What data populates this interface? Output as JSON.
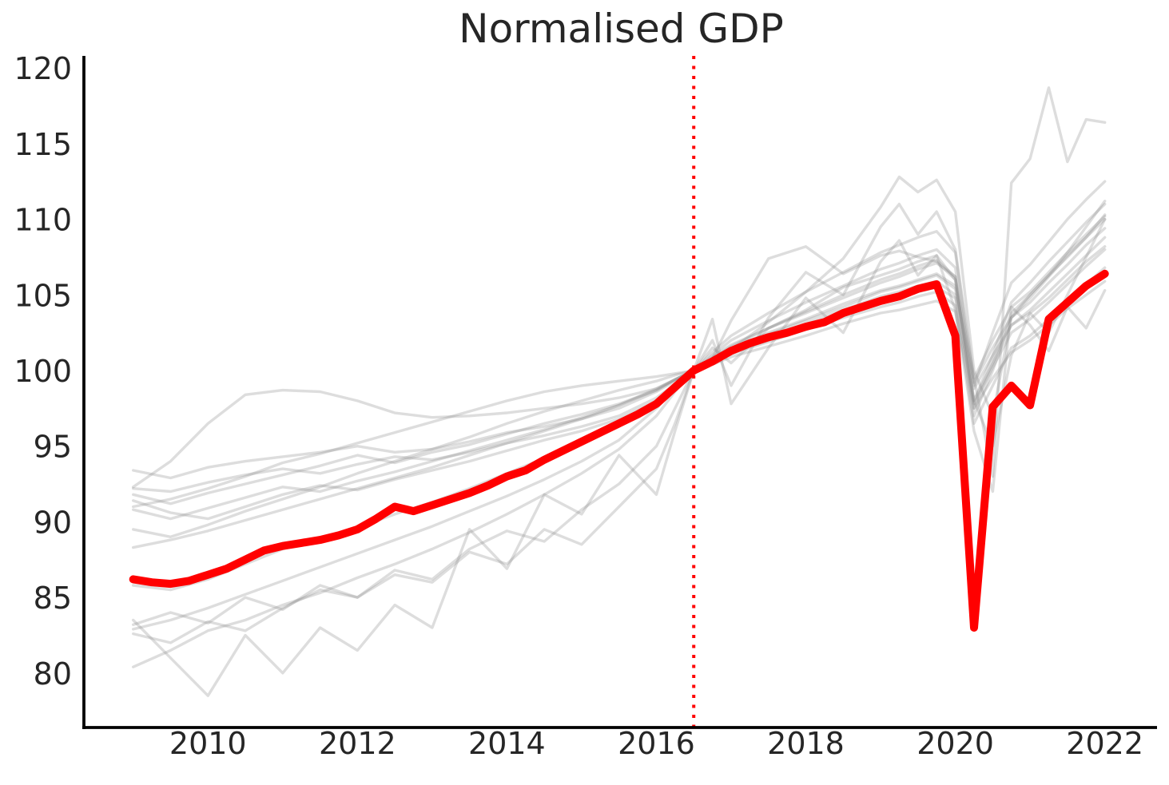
{
  "figure": {
    "title": "Normalised GDP"
  },
  "chart_data": {
    "type": "line",
    "title": "Normalised GDP",
    "xlabel": "",
    "ylabel": "",
    "grid": false,
    "legend_position": "none",
    "xlim": [
      2008.34,
      2022.72
    ],
    "ylim": [
      76.4,
      120.8
    ],
    "x_ticks": [
      2010,
      2012,
      2014,
      2016,
      2018,
      2020,
      2022
    ],
    "y_ticks": [
      80,
      85,
      90,
      95,
      100,
      105,
      110,
      115,
      120
    ],
    "colors": {
      "highlight_line": "#ff0000",
      "vline": "#ff0000",
      "background_lines": "#8f8f8f",
      "axis": "#000000",
      "text": "#262626"
    },
    "vline": {
      "x": 2016.5,
      "style": "dotted"
    },
    "highlight_series": {
      "x": [
        2009.0,
        2009.25,
        2009.5,
        2009.75,
        2010.0,
        2010.25,
        2010.5,
        2010.75,
        2011.0,
        2011.25,
        2011.5,
        2011.75,
        2012.0,
        2012.25,
        2012.5,
        2012.75,
        2013.0,
        2013.25,
        2013.5,
        2013.75,
        2014.0,
        2014.25,
        2014.5,
        2014.75,
        2015.0,
        2015.25,
        2015.5,
        2015.75,
        2016.0,
        2016.25,
        2016.5,
        2016.75,
        2017.0,
        2017.25,
        2017.5,
        2017.75,
        2018.0,
        2018.25,
        2018.5,
        2018.75,
        2019.0,
        2019.25,
        2019.5,
        2019.75,
        2020.0,
        2020.25,
        2020.5,
        2020.75,
        2021.0,
        2021.25,
        2021.5,
        2021.75,
        2022.0
      ],
      "y": [
        86.2,
        86.0,
        85.9,
        86.1,
        86.5,
        86.9,
        87.5,
        88.1,
        88.4,
        88.6,
        88.8,
        89.1,
        89.5,
        90.2,
        91.0,
        90.7,
        91.1,
        91.5,
        91.9,
        92.4,
        93.0,
        93.4,
        94.1,
        94.7,
        95.3,
        95.9,
        96.5,
        97.1,
        97.8,
        98.9,
        100.0,
        100.6,
        101.3,
        101.8,
        102.2,
        102.5,
        102.9,
        103.2,
        103.8,
        104.2,
        104.6,
        104.9,
        105.4,
        105.7,
        102.3,
        83.0,
        97.6,
        99.0,
        97.7,
        103.4,
        104.5,
        105.6,
        106.4
      ]
    },
    "background_series_x": [
      2009.0,
      2009.5,
      2010.0,
      2010.5,
      2011.0,
      2011.5,
      2012.0,
      2012.5,
      2013.0,
      2013.5,
      2014.0,
      2014.5,
      2015.0,
      2015.5,
      2016.0,
      2016.25,
      2016.5,
      2016.75,
      2017.0,
      2017.5,
      2018.0,
      2018.5,
      2019.0,
      2019.25,
      2019.5,
      2019.75,
      2020.0,
      2020.25,
      2020.5,
      2020.75,
      2021.0,
      2021.25,
      2021.5,
      2021.75,
      2022.0
    ],
    "background_series": [
      {
        "y": [
          93.4,
          92.9,
          93.6,
          94.0,
          94.3,
          94.6,
          95.0,
          94.6,
          94.8,
          95.3,
          95.9,
          96.3,
          96.8,
          97.5,
          98.6,
          99.3,
          100,
          100.6,
          101.2,
          102.0,
          102.9,
          103.7,
          104.5,
          104.8,
          105.2,
          105.5,
          104.8,
          98.0,
          100.5,
          103.0,
          103.8,
          104.8,
          106.0,
          107.2,
          108.2
        ]
      },
      {
        "y": [
          92.3,
          94.0,
          96.5,
          98.4,
          98.7,
          98.6,
          98.0,
          97.2,
          96.9,
          97.0,
          97.2,
          97.5,
          97.8,
          98.2,
          98.8,
          99.4,
          100,
          100.4,
          100.9,
          101.6,
          102.3,
          103.1,
          103.8,
          104.0,
          104.3,
          104.6,
          103.9,
          97.5,
          99.5,
          101.2,
          102.0,
          103.0,
          104.1,
          105.0,
          105.9
        ]
      },
      {
        "y": [
          92.2,
          92.0,
          92.6,
          93.1,
          93.5,
          93.2,
          93.8,
          94.3,
          94.1,
          94.6,
          95.2,
          95.7,
          96.3,
          97.0,
          98.2,
          99.1,
          100,
          100.8,
          101.5,
          102.5,
          103.4,
          104.4,
          105.3,
          105.6,
          106.0,
          106.4,
          105.6,
          99.2,
          101.5,
          103.5,
          104.5,
          105.8,
          107.0,
          108.3,
          109.4
        ]
      },
      {
        "y": [
          91.8,
          91.2,
          91.9,
          92.5,
          93.1,
          93.7,
          94.4,
          93.9,
          94.6,
          95.1,
          95.8,
          96.5,
          97.1,
          97.8,
          98.7,
          99.4,
          100,
          100.5,
          101.1,
          101.9,
          102.7,
          103.5,
          104.2,
          104.5,
          104.9,
          105.2,
          104.3,
          96.5,
          99.0,
          101.5,
          102.3,
          103.4,
          104.6,
          105.7,
          106.8
        ]
      },
      {
        "y": [
          91.4,
          90.6,
          90.2,
          91.0,
          91.8,
          92.4,
          92.1,
          92.8,
          93.4,
          94.0,
          94.7,
          95.4,
          96.0,
          96.8,
          98.0,
          99.0,
          100,
          100.9,
          101.7,
          102.8,
          103.8,
          104.8,
          105.8,
          106.2,
          106.7,
          107.1,
          106.2,
          99.5,
          102.0,
          104.2,
          105.2,
          106.5,
          107.8,
          109.0,
          110.2
        ]
      },
      {
        "y": [
          91.0,
          91.5,
          92.2,
          93.0,
          93.9,
          94.5,
          95.2,
          95.9,
          96.6,
          97.3,
          98.0,
          98.6,
          99.0,
          99.3,
          99.6,
          99.8,
          100,
          100.8,
          103.3,
          107.4,
          108.2,
          106.4,
          107.6,
          107.9,
          107.5,
          107.2,
          106.0,
          98.0,
          95.0,
          101.0,
          103.8,
          102.5,
          105.0,
          107.5,
          110.0
        ]
      },
      {
        "y": [
          89.5,
          89.0,
          89.8,
          90.7,
          91.5,
          92.3,
          93.2,
          94.0,
          94.8,
          95.6,
          96.5,
          97.3,
          98.0,
          98.7,
          99.3,
          99.7,
          100,
          100.6,
          101.4,
          103.2,
          105.2,
          107.4,
          110.8,
          112.8,
          111.8,
          112.6,
          110.5,
          100.0,
          97.0,
          103.5,
          105.0,
          106.3,
          107.8,
          109.5,
          111.2
        ]
      },
      {
        "y": [
          88.3,
          88.8,
          89.4,
          90.1,
          90.8,
          91.5,
          92.2,
          92.9,
          93.6,
          94.4,
          95.2,
          96.0,
          96.8,
          97.7,
          98.7,
          99.4,
          100,
          100.7,
          101.4,
          102.4,
          103.3,
          104.2,
          105.2,
          105.5,
          105.9,
          106.3,
          105.4,
          98.8,
          101.0,
          103.0,
          104.0,
          105.2,
          106.4,
          107.6,
          108.8
        ]
      },
      {
        "y": [
          85.8,
          85.5,
          86.2,
          87.2,
          88.2,
          88.9,
          89.6,
          90.5,
          91.3,
          92.2,
          93.2,
          94.2,
          95.2,
          96.3,
          98.0,
          99.0,
          100,
          100.8,
          101.6,
          102.8,
          103.9,
          105.0,
          106.0,
          106.4,
          106.9,
          107.3,
          106.2,
          97.5,
          100.5,
          103.8,
          105.0,
          106.3,
          107.5,
          108.8,
          110.0
        ]
      },
      {
        "y": [
          83.2,
          84.0,
          83.3,
          85.0,
          84.2,
          85.8,
          85.0,
          86.5,
          86.0,
          88.0,
          87.2,
          89.5,
          88.5,
          91.0,
          93.5,
          96.5,
          100,
          103.4,
          97.8,
          101.5,
          104.8,
          102.5,
          107.2,
          108.6,
          106.3,
          107.6,
          104.0,
          96.0,
          92.0,
          104.2,
          103.0,
          101.3,
          104.2,
          102.8,
          105.3
        ]
      },
      {
        "y": [
          82.9,
          83.5,
          84.3,
          85.2,
          86.1,
          87.0,
          87.9,
          88.8,
          89.7,
          90.7,
          91.7,
          92.8,
          94.0,
          95.4,
          97.5,
          98.8,
          100,
          101.0,
          102.0,
          103.3,
          104.5,
          105.6,
          106.7,
          107.1,
          107.6,
          108.0,
          106.8,
          98.0,
          101.0,
          104.5,
          105.8,
          107.2,
          108.5,
          109.8,
          111.0
        ]
      },
      {
        "y": [
          82.6,
          82.0,
          83.4,
          82.8,
          84.3,
          85.5,
          85.0,
          86.8,
          86.2,
          88.2,
          89.4,
          88.7,
          90.8,
          92.5,
          95.0,
          97.5,
          100,
          101.5,
          100.5,
          102.8,
          104.0,
          105.5,
          106.3,
          106.7,
          107.2,
          107.6,
          106.0,
          97.0,
          100.0,
          103.5,
          104.8,
          106.2,
          107.6,
          108.8,
          110.3
        ]
      },
      {
        "y": [
          80.4,
          81.5,
          82.8,
          83.5,
          84.5,
          85.3,
          86.3,
          87.2,
          88.2,
          89.3,
          90.5,
          91.8,
          93.2,
          94.8,
          97.0,
          98.6,
          100,
          101.2,
          102.3,
          103.8,
          105.2,
          106.5,
          107.8,
          108.3,
          108.8,
          109.2,
          107.8,
          99.0,
          102.5,
          105.8,
          107.0,
          108.5,
          110.0,
          111.3,
          112.5
        ]
      },
      {
        "y": [
          83.5,
          81.0,
          78.5,
          82.5,
          80.0,
          83.0,
          81.5,
          84.5,
          83.0,
          89.5,
          86.9,
          91.8,
          90.5,
          94.4,
          91.8,
          96.0,
          100,
          102.0,
          99.0,
          103.5,
          106.5,
          105.0,
          109.5,
          111.0,
          109.0,
          110.5,
          108.0,
          99.5,
          93.0,
          112.4,
          114.0,
          118.7,
          113.8,
          116.6,
          116.4
        ]
      },
      {
        "y": [
          90.8,
          90.2,
          90.9,
          91.6,
          92.3,
          92.0,
          92.7,
          93.3,
          94.0,
          94.7,
          95.4,
          96.1,
          96.9,
          97.7,
          98.8,
          99.4,
          100,
          100.6,
          101.3,
          102.2,
          103.1,
          104.0,
          104.9,
          105.2,
          105.6,
          105.9,
          105.0,
          97.8,
          100.2,
          102.5,
          103.4,
          104.5,
          105.7,
          106.9,
          108.0
        ]
      }
    ]
  }
}
